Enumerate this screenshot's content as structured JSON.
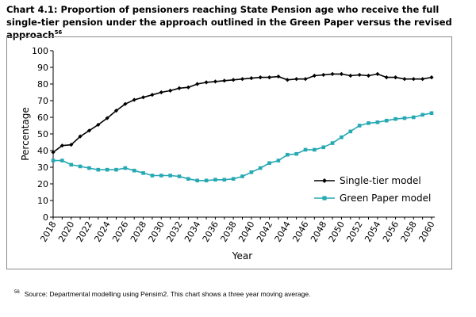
{
  "title": {
    "text": "Chart 4.1: Proportion of pensioners reaching State Pension age who receive the full single-tier pension under the approach outlined in the Green Paper versus the revised approach",
    "ref": "56"
  },
  "footnote": {
    "ref": "56",
    "text": "Source: Departmental modelling using Pensim2. This chart shows a three year moving average."
  },
  "chart_data": {
    "type": "line",
    "title": "",
    "xlabel": "Year",
    "ylabel": "Percentage",
    "x": [
      2018,
      2019,
      2020,
      2021,
      2022,
      2023,
      2024,
      2025,
      2026,
      2027,
      2028,
      2029,
      2030,
      2031,
      2032,
      2033,
      2034,
      2035,
      2036,
      2037,
      2038,
      2039,
      2040,
      2041,
      2042,
      2043,
      2044,
      2045,
      2046,
      2047,
      2048,
      2049,
      2050,
      2051,
      2052,
      2053,
      2054,
      2055,
      2056,
      2057,
      2058,
      2059,
      2060
    ],
    "x_tick_labels": [
      "2018",
      "2020",
      "2022",
      "2024",
      "2026",
      "2028",
      "2030",
      "2032",
      "2034",
      "2036",
      "2038",
      "2040",
      "2042",
      "2044",
      "2046",
      "2048",
      "2050",
      "2052",
      "2054",
      "2056",
      "2058",
      "2060"
    ],
    "y_ticks": [
      0,
      10,
      20,
      30,
      40,
      50,
      60,
      70,
      80,
      90,
      100
    ],
    "ylim": [
      0,
      100
    ],
    "grid": false,
    "legend_position": "right",
    "series": [
      {
        "name": "Single-tier model",
        "color": "#000000",
        "marker": "diamond",
        "values": [
          39,
          43,
          43.5,
          48.5,
          52,
          55.5,
          59.5,
          64,
          68,
          70.5,
          72,
          73.5,
          75,
          76,
          77.5,
          78,
          80,
          81,
          81.5,
          82,
          82.5,
          83,
          83.5,
          84,
          84,
          84.5,
          82.5,
          83,
          83,
          85,
          85.5,
          86,
          86,
          85,
          85.5,
          85,
          86,
          84,
          84,
          83,
          83,
          83,
          84
        ]
      },
      {
        "name": "Green Paper model",
        "color": "#27a9b4",
        "marker": "square",
        "values": [
          34,
          34,
          31.5,
          30.5,
          29.5,
          28.5,
          28.5,
          28.5,
          29.5,
          28,
          26.5,
          25,
          25,
          25,
          24.5,
          23,
          22,
          22,
          22.5,
          22.5,
          23,
          24.5,
          27,
          29.5,
          32.5,
          34,
          37.5,
          38,
          40.5,
          40.5,
          42,
          44.5,
          48,
          51.5,
          55,
          56.5,
          57,
          58,
          59,
          59.5,
          60,
          61.5,
          62.5
        ]
      }
    ]
  }
}
